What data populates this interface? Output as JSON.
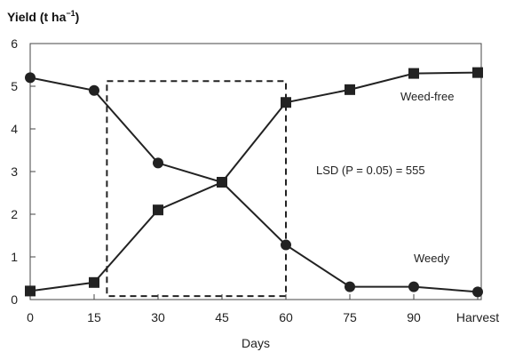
{
  "chart_data": {
    "type": "line",
    "title_main": "Yield (t ha",
    "title_sup": "−1",
    "title_close": ")",
    "xlabel": "Days",
    "categories": [
      "0",
      "15",
      "30",
      "45",
      "60",
      "75",
      "90",
      "Harvest"
    ],
    "yticks": [
      "0",
      "1",
      "2",
      "3",
      "4",
      "5",
      "6"
    ],
    "ylim": [
      0,
      6
    ],
    "series": [
      {
        "name": "Weed-free",
        "marker": "square",
        "color": "#222222",
        "values": [
          0.2,
          0.4,
          2.1,
          2.75,
          4.62,
          4.92,
          5.3,
          5.32
        ]
      },
      {
        "name": "Weedy",
        "marker": "circle",
        "color": "#222222",
        "values": [
          5.2,
          4.9,
          3.2,
          2.75,
          1.28,
          0.3,
          0.3,
          0.18
        ]
      }
    ],
    "critical_period_box": {
      "x_start_days": 18,
      "x_end_days": 60,
      "y_bottom": 0.08,
      "y_top": 5.12
    },
    "annotation": "LSD (P = 0.05) = 555",
    "grid": false,
    "legend": "inline labels"
  }
}
